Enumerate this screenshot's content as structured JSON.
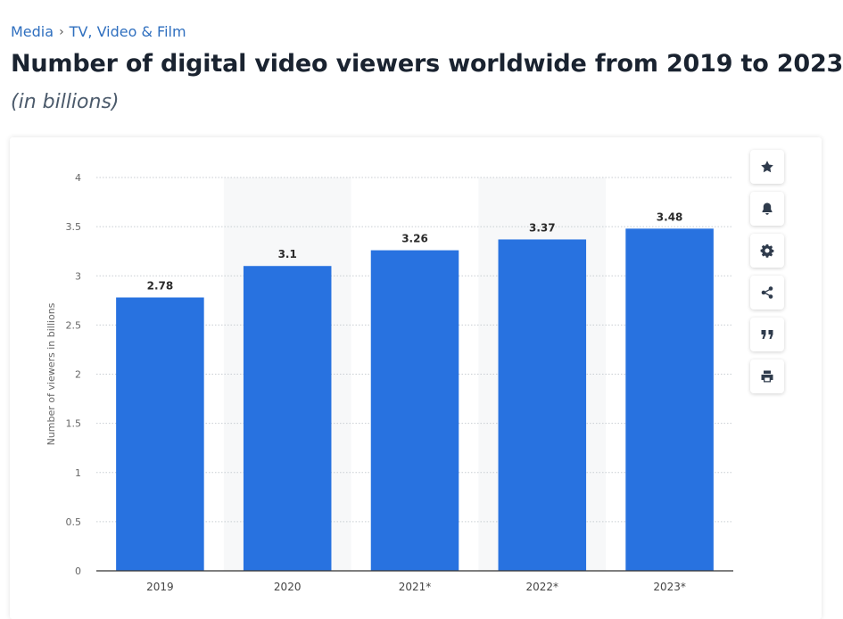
{
  "breadcrumb": {
    "items": [
      "Media",
      "TV, Video & Film"
    ],
    "separator": "›"
  },
  "header": {
    "title": "Number of digital video viewers worldwide from 2019 to 2023",
    "subtitle": "(in billions)"
  },
  "toolbar": {
    "icons": [
      "star-icon",
      "bell-icon",
      "gear-icon",
      "share-icon",
      "quote-icon",
      "print-icon"
    ]
  },
  "colors": {
    "bar": "#2872e0",
    "grid": "#c8cdd2",
    "band": "#f7f8f9",
    "axis": "#333333",
    "tick_text": "#666666"
  },
  "chart_data": {
    "type": "bar",
    "categories": [
      "2019",
      "2020",
      "2021*",
      "2022*",
      "2023*"
    ],
    "values": [
      2.78,
      3.1,
      3.26,
      3.37,
      3.48
    ],
    "value_labels": [
      "2.78",
      "3.1",
      "3.26",
      "3.37",
      "3.48"
    ],
    "ylabel": "Number of viewers in billions",
    "xlabel": "",
    "ylim": [
      0,
      4
    ],
    "yticks": [
      0,
      0.5,
      1,
      1.5,
      2,
      2.5,
      3,
      3.5,
      4
    ],
    "ytick_labels": [
      "0",
      "0.5",
      "1",
      "1.5",
      "2",
      "2.5",
      "3",
      "3.5",
      "4"
    ],
    "grid": true,
    "legend": "none"
  }
}
